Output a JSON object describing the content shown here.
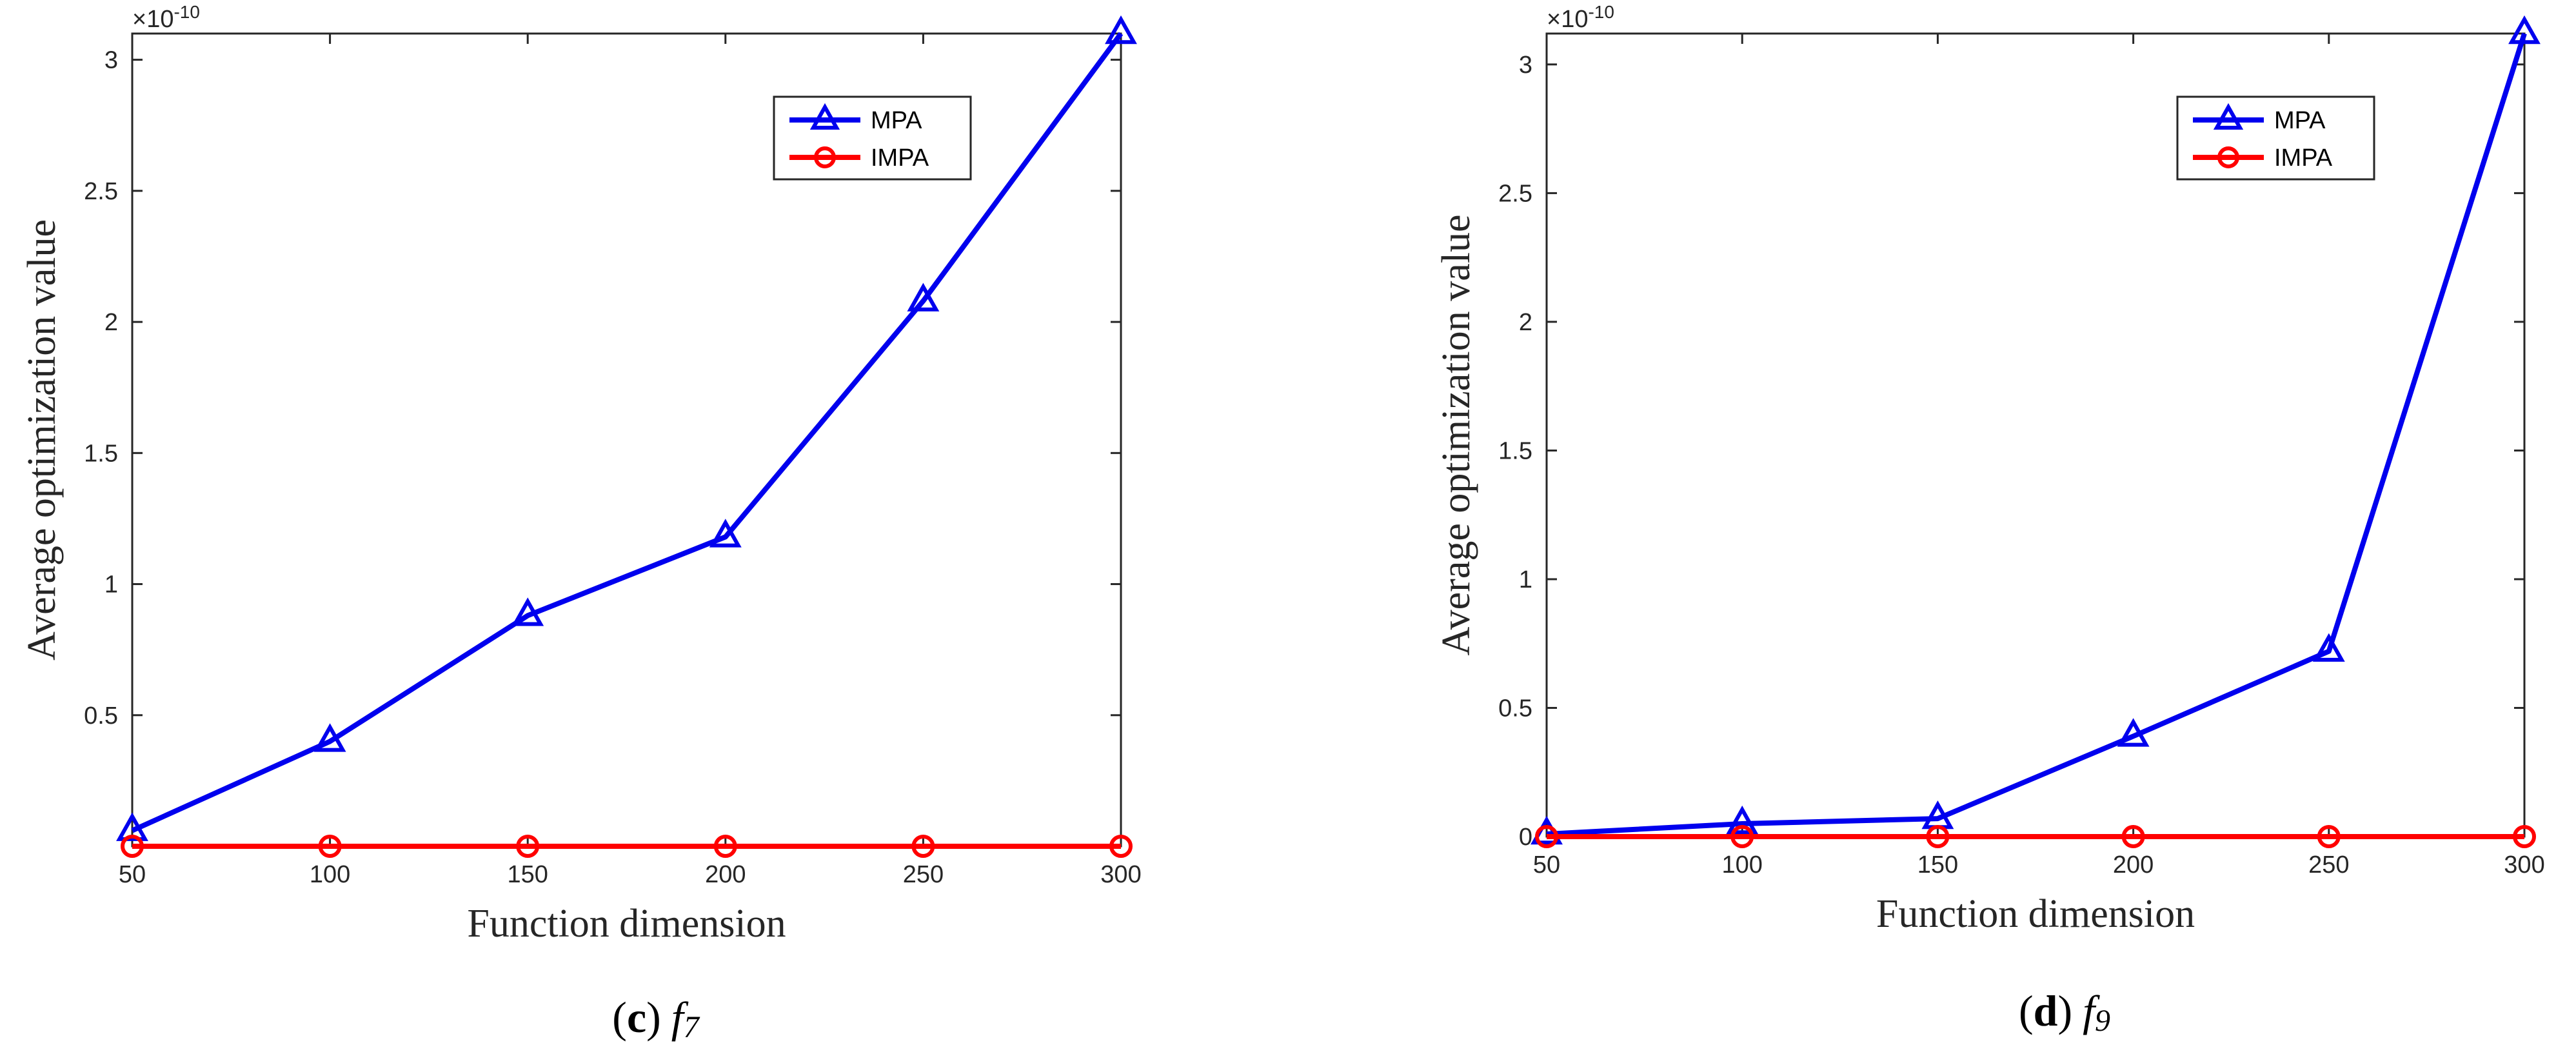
{
  "chart_data": [
    {
      "type": "line",
      "caption": {
        "open": "(",
        "letter": "c",
        "close": ")",
        "func": "f",
        "sub": "7"
      },
      "categories": [
        "50",
        "100",
        "150",
        "200",
        "250",
        "300"
      ],
      "x": [
        50,
        100,
        150,
        200,
        250,
        300
      ],
      "xlabel": "Function dimension",
      "ylabel": "Average optimization value",
      "exponent_label": "×10",
      "exponent_power": "-10",
      "ylim": [
        0,
        3.1
      ],
      "yticks": [
        0.5,
        1,
        1.5,
        2,
        2.5,
        3
      ],
      "ytick_labels": [
        "0.5",
        "1",
        "1.5",
        "2",
        "2.5",
        "3"
      ],
      "series": [
        {
          "name": "MPA",
          "color": "#0000ee",
          "marker": "triangle",
          "values": [
            0.06,
            0.4,
            0.88,
            1.18,
            2.08,
            3.1
          ]
        },
        {
          "name": "IMPA",
          "color": "#ff0000",
          "marker": "circle",
          "values": [
            0,
            0,
            0,
            0,
            0,
            0
          ]
        }
      ],
      "legend_position": "top-right",
      "grid": false
    },
    {
      "type": "line",
      "caption": {
        "open": "(",
        "letter": "d",
        "close": ")",
        "func": "f",
        "sub": "9"
      },
      "categories": [
        "50",
        "100",
        "150",
        "200",
        "250",
        "300"
      ],
      "x": [
        50,
        100,
        150,
        200,
        250,
        300
      ],
      "xlabel": "Function dimension",
      "ylabel": "Average optimization value",
      "exponent_label": "×10",
      "exponent_power": "-10",
      "ylim": [
        0,
        3.12
      ],
      "yticks": [
        0,
        0.5,
        1,
        1.5,
        2,
        2.5,
        3
      ],
      "ytick_labels": [
        "0",
        "0.5",
        "1",
        "1.5",
        "2",
        "2.5",
        "3"
      ],
      "series": [
        {
          "name": "MPA",
          "color": "#0000ee",
          "marker": "triangle",
          "values": [
            0.01,
            0.05,
            0.07,
            0.39,
            0.72,
            3.12
          ]
        },
        {
          "name": "IMPA",
          "color": "#ff0000",
          "marker": "circle",
          "values": [
            0,
            0,
            0,
            0,
            0,
            0
          ]
        }
      ],
      "legend_position": "top-right",
      "grid": false
    }
  ]
}
